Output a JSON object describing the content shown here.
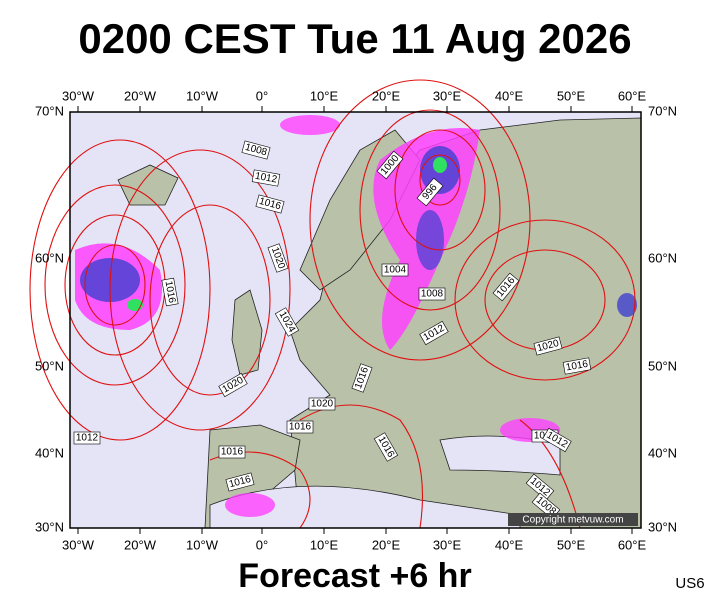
{
  "title": "0200 CEST Tue 11 Aug 2026",
  "longitude_labels": [
    "30°W",
    "20°W",
    "10°W",
    "0°",
    "10°E",
    "20°E",
    "30°E",
    "40°E",
    "50°E",
    "60°E"
  ],
  "latitude_labels": [
    "70°N",
    "60°N",
    "50°N",
    "40°N",
    "30°N"
  ],
  "isobar_labels": [
    "1008",
    "1012",
    "1016",
    "1020",
    "1024",
    "1020",
    "1012",
    "1016",
    "1016",
    "1016",
    "1000",
    "996",
    "1004",
    "1008",
    "1012",
    "1016",
    "1020",
    "1016",
    "1016",
    "1016",
    "1020",
    "1016",
    "1016",
    "1012",
    "1012",
    "1008"
  ],
  "copyright": "Copyright metvuw.com",
  "footer": "Forecast +6 hr",
  "code": "US6"
}
